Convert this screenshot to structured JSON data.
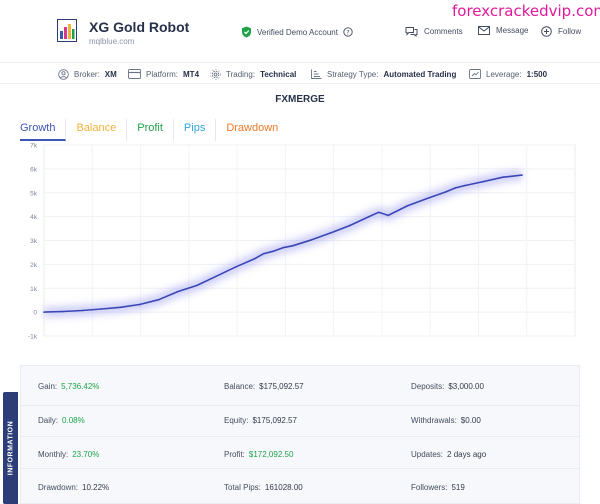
{
  "watermark": "forexcrackedvip.com",
  "header": {
    "name": "XG Gold Robot",
    "site": "mqlblue.com",
    "verified": "Verified Demo Account",
    "comments": "Comments",
    "message": "Message",
    "follow": "Follow"
  },
  "info": {
    "broker_label": "Broker:",
    "broker_value": "XM",
    "platform_label": "Platform:",
    "platform_value": "MT4",
    "trading_label": "Trading:",
    "trading_value": "Technical",
    "strategy_label": "Strategy Type:",
    "strategy_value": "Automated Trading",
    "leverage_label": "Leverage:",
    "leverage_value": "1:500"
  },
  "chart_title": "FXMERGE",
  "tabs": [
    {
      "label": "Growth",
      "color": "#3c56b8"
    },
    {
      "label": "Balance",
      "color": "#f0b33a"
    },
    {
      "label": "Profit",
      "color": "#1fa34a"
    },
    {
      "label": "Pips",
      "color": "#2fa8d6"
    },
    {
      "label": "Drawdown",
      "color": "#f07a2a"
    }
  ],
  "chart_data": {
    "type": "line",
    "title": "",
    "xlabel": "",
    "ylabel": "",
    "yticks": [
      "-1k",
      "0",
      "1k",
      "2k",
      "3k",
      "4k",
      "5k",
      "6k",
      "7k"
    ],
    "ylim": [
      -1000,
      7000
    ],
    "grid": true,
    "line_color": "#3b47b5",
    "x": [
      0,
      4,
      8,
      12,
      16,
      20,
      24,
      28,
      32,
      36,
      40,
      44,
      46,
      48,
      50,
      52,
      56,
      60,
      64,
      68,
      70,
      72,
      76,
      80,
      84,
      86,
      88,
      92,
      96,
      100
    ],
    "values": [
      0,
      25,
      70,
      130,
      200,
      320,
      520,
      860,
      1120,
      1500,
      1880,
      2230,
      2450,
      2550,
      2700,
      2780,
      3030,
      3320,
      3630,
      4000,
      4180,
      4050,
      4450,
      4750,
      5030,
      5200,
      5300,
      5470,
      5650,
      5740
    ]
  },
  "stats": {
    "gain_label": "Gain:",
    "gain_value": "5,736.42%",
    "daily_label": "Daily:",
    "daily_value": "0.08%",
    "monthly_label": "Monthly:",
    "monthly_value": "23.70%",
    "drawdown_label": "Drawdown:",
    "drawdown_value": "10.22%",
    "balance_label": "Balance:",
    "balance_value": "$175,092.57",
    "equity_label": "Equity:",
    "equity_value": "$175,092.57",
    "profit_label": "Profit:",
    "profit_value": "$172,092.50",
    "pips_label": "Total Pips:",
    "pips_value": "161028.00",
    "deposits_label": "Deposits:",
    "deposits_value": "$3,000.00",
    "withdrawals_label": "Withdrawals:",
    "withdrawals_value": "$0.00",
    "updates_label": "Updates:",
    "updates_value": "2 days ago",
    "followers_label": "Followers:",
    "followers_value": "519"
  },
  "side_tab": "INFORMATION"
}
